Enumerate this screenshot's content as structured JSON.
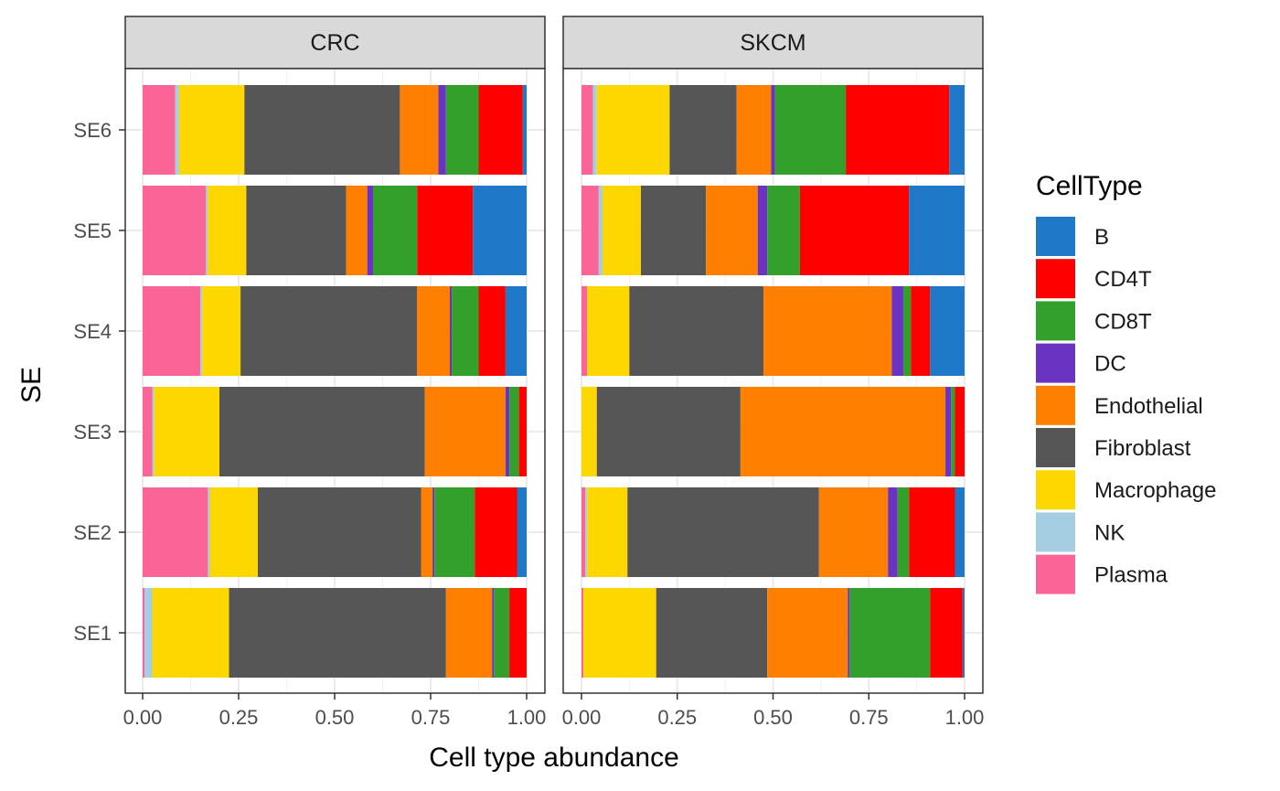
{
  "chart_data": {
    "type": "bar",
    "orientation": "horizontal",
    "stacked": true,
    "xlabel": "Cell type abundance",
    "ylabel": "SE",
    "xlim": [
      0,
      1
    ],
    "x_ticks": [
      "0.00",
      "0.25",
      "0.50",
      "0.75",
      "1.00"
    ],
    "categories": [
      "SE1",
      "SE2",
      "SE3",
      "SE4",
      "SE5",
      "SE6"
    ],
    "legend": {
      "title": "CellType",
      "position": "right",
      "entries": [
        "B",
        "CD4T",
        "CD8T",
        "DC",
        "Endothelial",
        "Fibroblast",
        "Macrophage",
        "NK",
        "Plasma"
      ]
    },
    "stack_order_left_to_right": [
      "Plasma",
      "NK",
      "Macrophage",
      "Fibroblast",
      "Endothelial",
      "DC",
      "CD8T",
      "CD4T",
      "B"
    ],
    "colors": {
      "B": "#1F78C8",
      "CD4T": "#FF0000",
      "CD8T": "#33A02C",
      "DC": "#6A33C2",
      "Endothelial": "#FF7F00",
      "Fibroblast": "#565656",
      "Macrophage": "#FFD700",
      "NK": "#A6CEE3",
      "Plasma": "#FB6496"
    },
    "grid": true,
    "panels": [
      {
        "name": "CRC",
        "rows": {
          "SE1": {
            "Plasma": 0.005,
            "NK": 0.02,
            "Macrophage": 0.2,
            "Fibroblast": 0.565,
            "Endothelial": 0.12,
            "DC": 0.005,
            "CD8T": 0.04,
            "CD4T": 0.045,
            "B": 0.0
          },
          "SE2": {
            "Plasma": 0.17,
            "NK": 0.005,
            "Macrophage": 0.125,
            "Fibroblast": 0.425,
            "Endothelial": 0.03,
            "DC": 0.005,
            "CD8T": 0.105,
            "CD4T": 0.11,
            "B": 0.025
          },
          "SE3": {
            "Plasma": 0.025,
            "NK": 0.005,
            "Macrophage": 0.17,
            "Fibroblast": 0.535,
            "Endothelial": 0.21,
            "DC": 0.01,
            "CD8T": 0.025,
            "CD4T": 0.02,
            "B": 0.0
          },
          "SE4": {
            "Plasma": 0.15,
            "NK": 0.005,
            "Macrophage": 0.1,
            "Fibroblast": 0.46,
            "Endothelial": 0.085,
            "DC": 0.005,
            "CD8T": 0.07,
            "CD4T": 0.07,
            "B": 0.055
          },
          "SE5": {
            "Plasma": 0.165,
            "NK": 0.005,
            "Macrophage": 0.1,
            "Fibroblast": 0.26,
            "Endothelial": 0.055,
            "DC": 0.015,
            "CD8T": 0.115,
            "CD4T": 0.145,
            "B": 0.14
          },
          "SE6": {
            "Plasma": 0.085,
            "NK": 0.01,
            "Macrophage": 0.17,
            "Fibroblast": 0.405,
            "Endothelial": 0.1,
            "DC": 0.02,
            "CD8T": 0.085,
            "CD4T": 0.115,
            "B": 0.01
          }
        }
      },
      {
        "name": "SKCM",
        "rows": {
          "SE1": {
            "Plasma": 0.005,
            "NK": 0.0,
            "Macrophage": 0.19,
            "Fibroblast": 0.29,
            "Endothelial": 0.21,
            "DC": 0.005,
            "CD8T": 0.21,
            "CD4T": 0.085,
            "B": 0.005
          },
          "SE2": {
            "Plasma": 0.01,
            "NK": 0.005,
            "Macrophage": 0.105,
            "Fibroblast": 0.5,
            "Endothelial": 0.18,
            "DC": 0.025,
            "CD8T": 0.03,
            "CD4T": 0.12,
            "B": 0.025
          },
          "SE3": {
            "Plasma": 0.0,
            "NK": 0.0,
            "Macrophage": 0.04,
            "Fibroblast": 0.375,
            "Endothelial": 0.535,
            "DC": 0.015,
            "CD8T": 0.01,
            "CD4T": 0.025,
            "B": 0.0
          },
          "SE4": {
            "Plasma": 0.015,
            "NK": 0.0,
            "Macrophage": 0.11,
            "Fibroblast": 0.35,
            "Endothelial": 0.335,
            "DC": 0.03,
            "CD8T": 0.02,
            "CD4T": 0.05,
            "B": 0.09
          },
          "SE5": {
            "Plasma": 0.045,
            "NK": 0.01,
            "Macrophage": 0.1,
            "Fibroblast": 0.17,
            "Endothelial": 0.135,
            "DC": 0.025,
            "CD8T": 0.085,
            "CD4T": 0.285,
            "B": 0.145
          },
          "SE6": {
            "Plasma": 0.03,
            "NK": 0.01,
            "Macrophage": 0.19,
            "Fibroblast": 0.175,
            "Endothelial": 0.09,
            "DC": 0.01,
            "CD8T": 0.185,
            "CD4T": 0.27,
            "B": 0.04
          }
        }
      }
    ]
  }
}
